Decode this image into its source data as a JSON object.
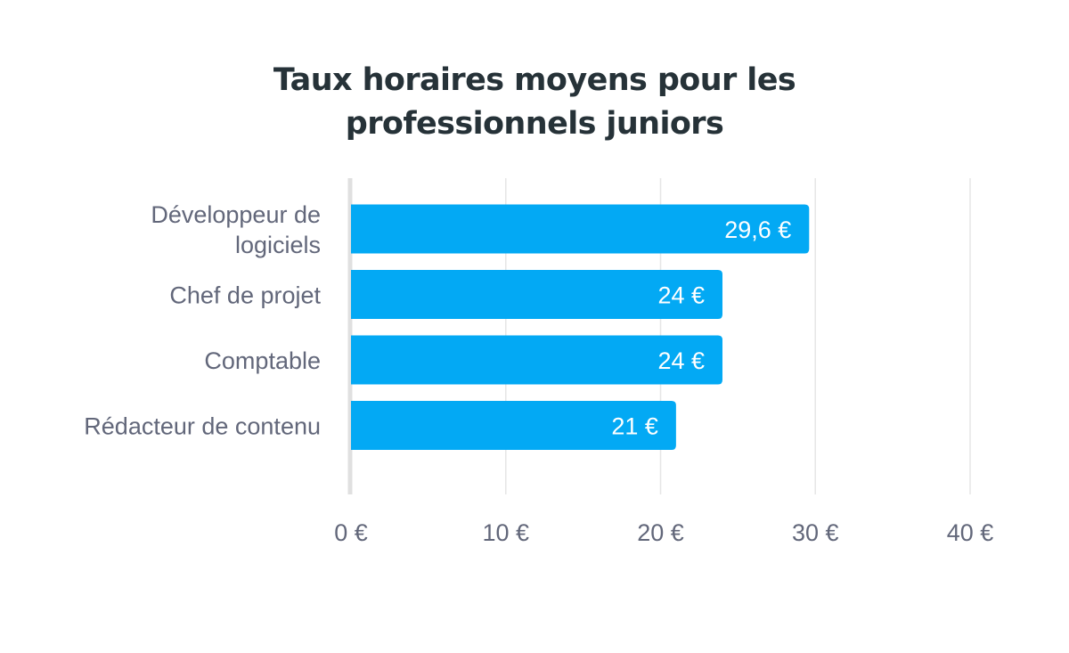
{
  "chart_data": {
    "type": "bar",
    "orientation": "horizontal",
    "title_lines": [
      "Taux horaires moyens pour les",
      "professionnels juniors"
    ],
    "categories": [
      [
        "Développeur de",
        "logiciels"
      ],
      [
        "Chef de projet"
      ],
      [
        "Comptable"
      ],
      [
        "Rédacteur de contenu"
      ]
    ],
    "values": [
      29.6,
      24,
      24,
      21
    ],
    "value_labels": [
      "29,6 €",
      "24 €",
      "24 €",
      "21 €"
    ],
    "x_ticks": [
      0,
      10,
      20,
      30,
      40
    ],
    "x_tick_labels": [
      "0 €",
      "10 €",
      "20 €",
      "30 €",
      "40 €"
    ],
    "xlim": [
      0,
      40
    ],
    "grid": true,
    "bar_color": "#03a9f4",
    "grid_color": "#e6e6e6",
    "axis_color": "#e0e0e0"
  }
}
